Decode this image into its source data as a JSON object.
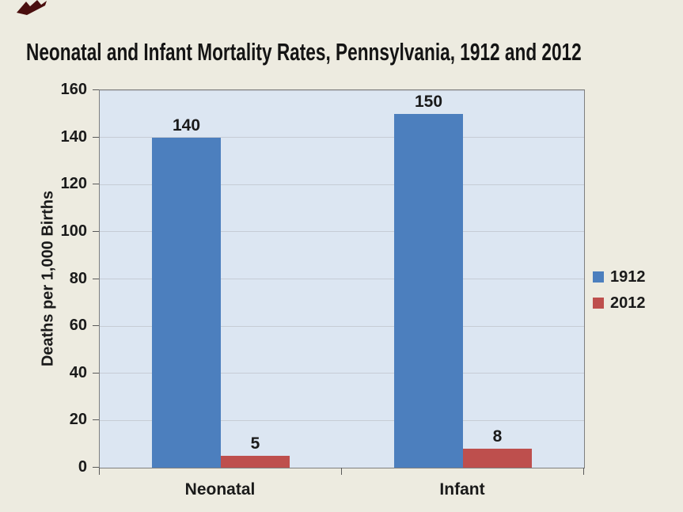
{
  "slide": {
    "background_color": "#EDEBE0",
    "corner_mark_color": "#4A0E0E"
  },
  "chart_data": {
    "type": "bar",
    "title": "Neonatal and Infant Mortality Rates, Pennsylvania, 1912 and 2012",
    "categories": [
      "Neonatal",
      "Infant"
    ],
    "series": [
      {
        "name": "1912",
        "color": "#4C7FBE",
        "values": [
          140,
          150
        ]
      },
      {
        "name": "2012",
        "color": "#BE4F4D",
        "values": [
          5,
          8
        ]
      }
    ],
    "data_labels": [
      [
        "140",
        "150"
      ],
      [
        "5",
        "8"
      ]
    ],
    "xlabel": "",
    "ylabel": "Deaths per 1,000 Births",
    "ylim": [
      0,
      160
    ],
    "yticks": [
      0,
      20,
      40,
      60,
      80,
      100,
      120,
      140,
      160
    ],
    "grid": true,
    "legend_position": "right",
    "legend_entries": [
      "1912",
      "2012"
    ],
    "plot_background": "#DCE6F2",
    "gridline_color": "#C6CCD5",
    "axis_color": "#595959",
    "text_color": "#1a1a1a"
  }
}
